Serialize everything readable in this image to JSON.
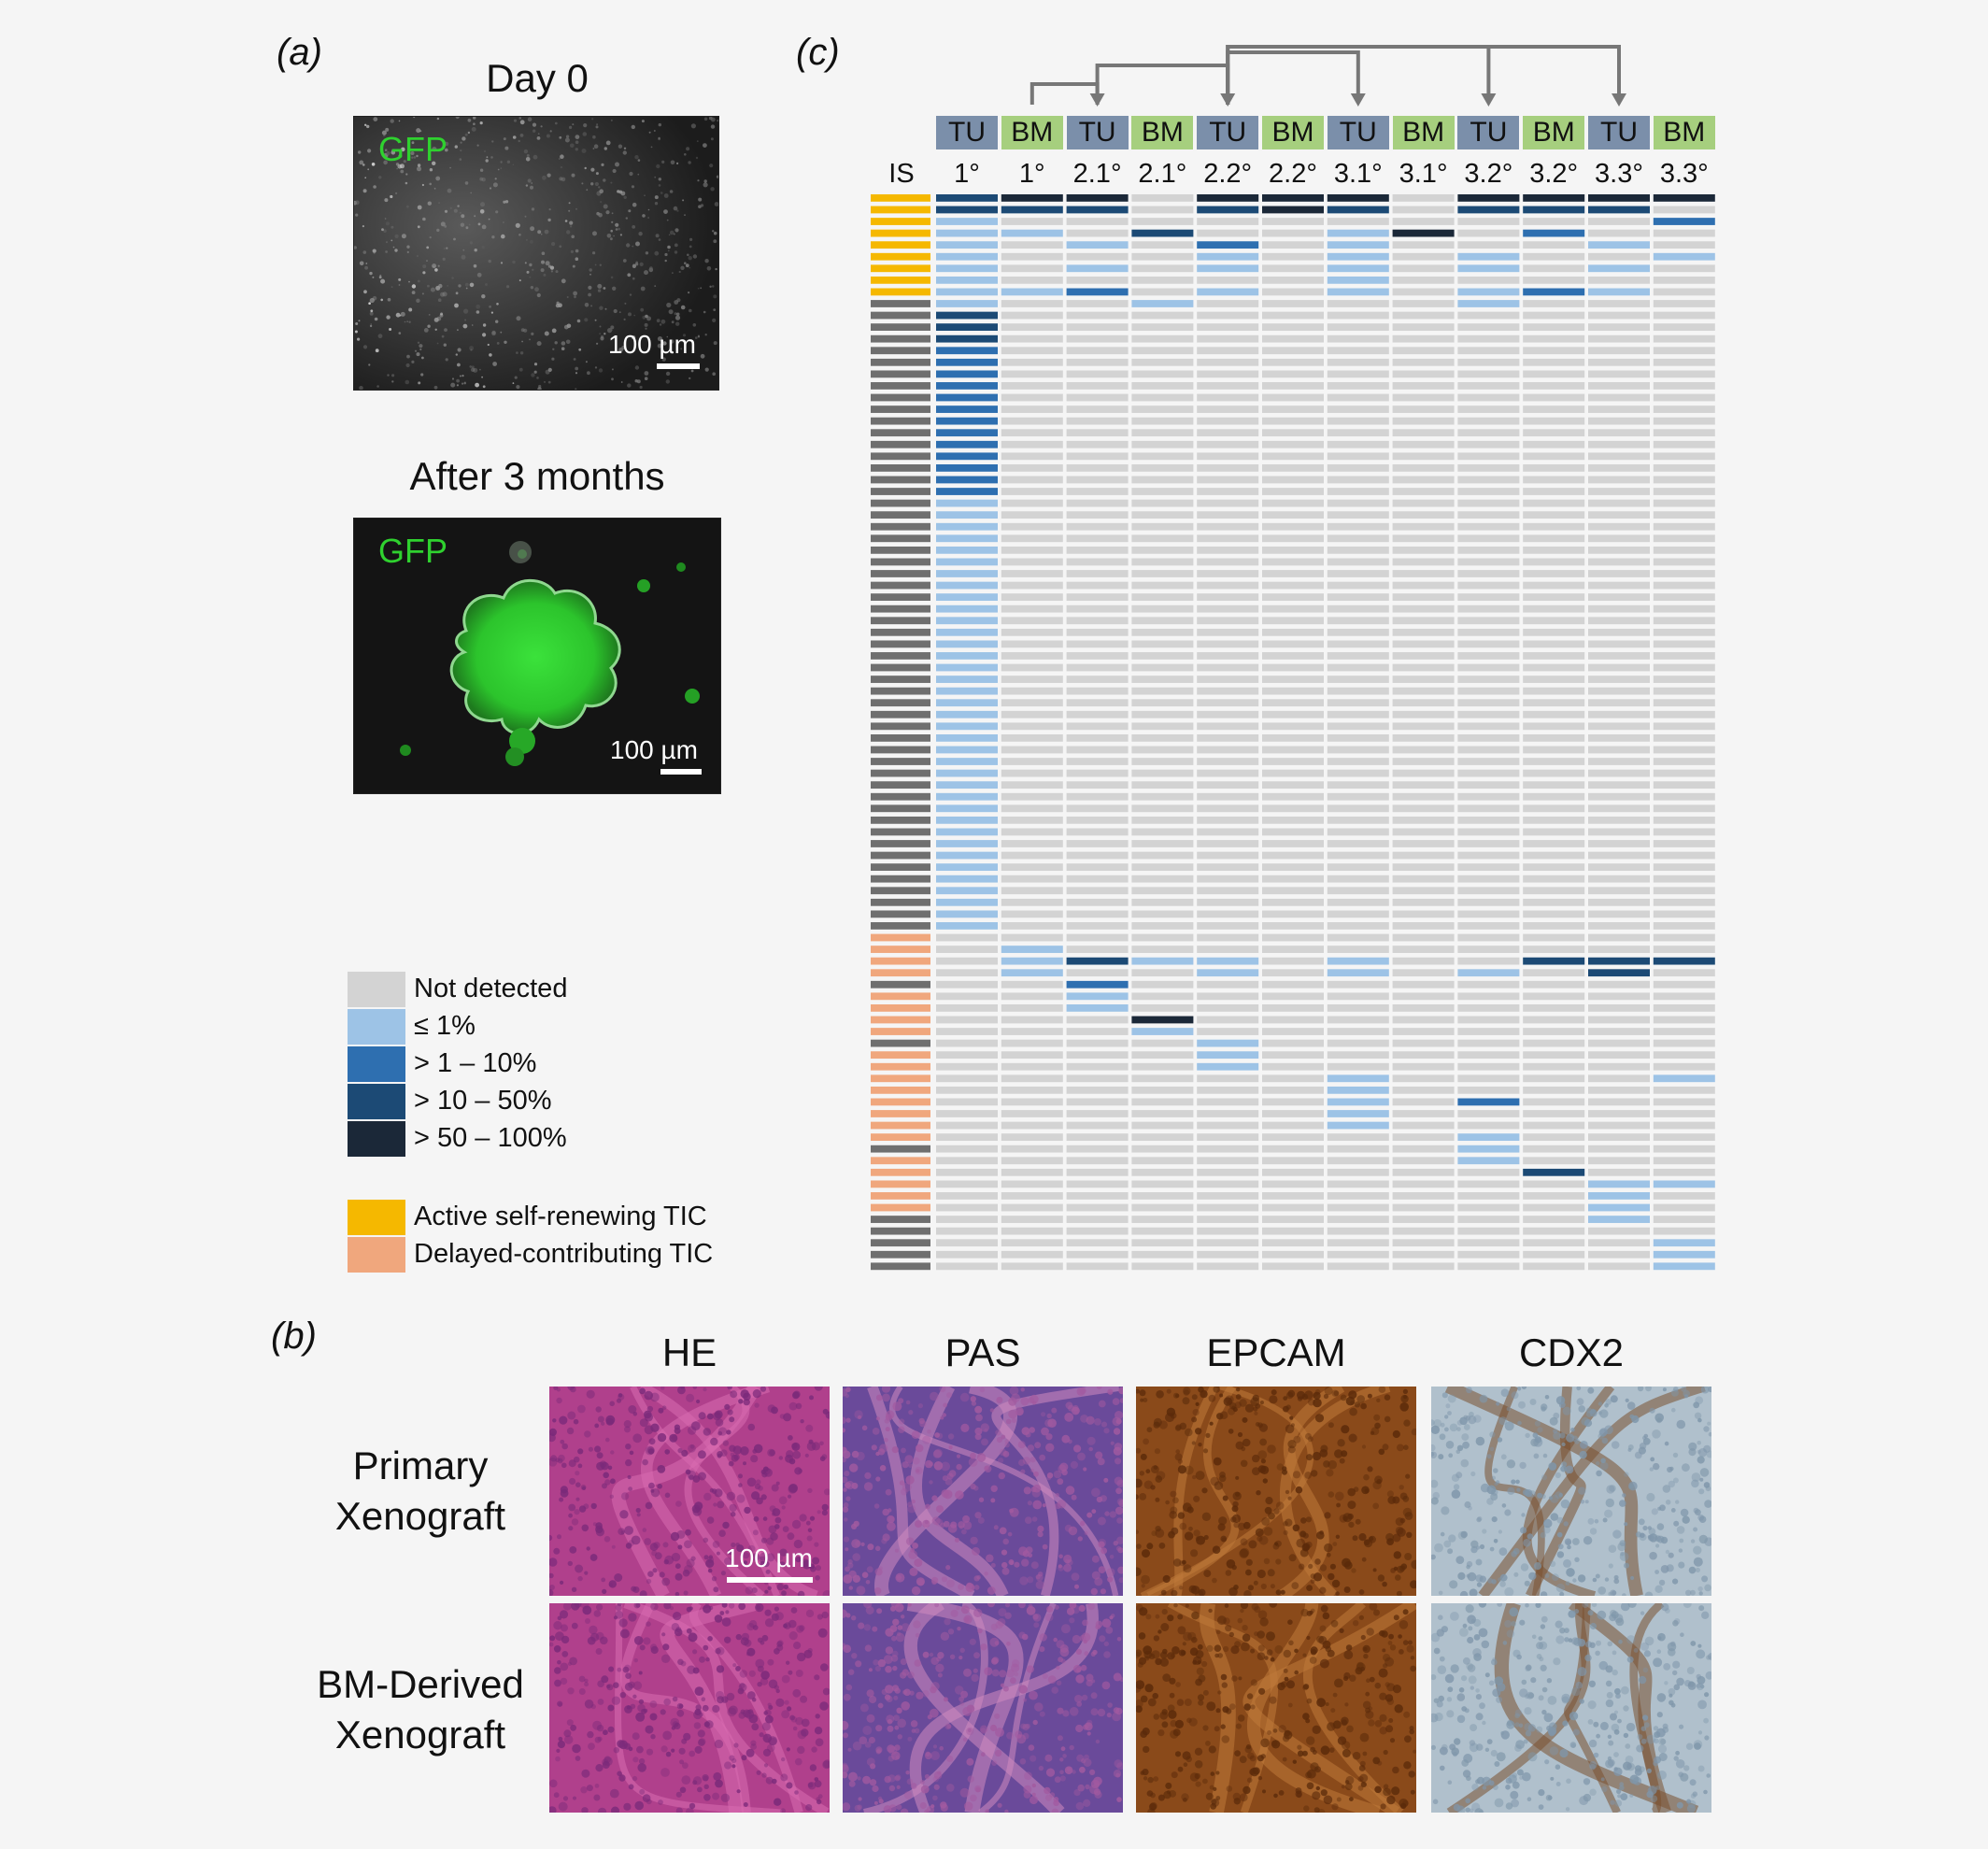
{
  "panel_a": {
    "label": "(a)",
    "day0_title": "Day 0",
    "after_title": "After 3 months",
    "gfp_label": "GFP",
    "scale_label": "100 µm"
  },
  "panel_b": {
    "label": "(b)",
    "columns": [
      "HE",
      "PAS",
      "EPCAM",
      "CDX2"
    ],
    "rows": [
      [
        "Primary",
        "Xenograft"
      ],
      [
        "BM-Derived",
        "Xenograft"
      ]
    ],
    "scale_label": "100 µm",
    "stain_colors": {
      "HE": [
        "#b0408c",
        "#7a2a7a",
        "#d96cb0"
      ],
      "PAS": [
        "#6a4a9a",
        "#a25aa0",
        "#d08ac0"
      ],
      "EPCAM": [
        "#8a4a1a",
        "#5a2a0a",
        "#c07a3a"
      ],
      "CDX2": [
        "#b0c0cc",
        "#7f96aa",
        "#7a5030"
      ]
    }
  },
  "panel_c": {
    "label": "(c)",
    "is_label": "IS",
    "columns": [
      {
        "type": "TU",
        "gen": "1°"
      },
      {
        "type": "BM",
        "gen": "1°"
      },
      {
        "type": "TU",
        "gen": "2.1°"
      },
      {
        "type": "BM",
        "gen": "2.1°"
      },
      {
        "type": "TU",
        "gen": "2.2°"
      },
      {
        "type": "BM",
        "gen": "2.2°"
      },
      {
        "type": "TU",
        "gen": "3.1°"
      },
      {
        "type": "BM",
        "gen": "3.1°"
      },
      {
        "type": "TU",
        "gen": "3.2°"
      },
      {
        "type": "BM",
        "gen": "3.2°"
      },
      {
        "type": "TU",
        "gen": "3.3°"
      },
      {
        "type": "BM",
        "gen": "3.3°"
      }
    ],
    "type_colors": {
      "TU": "#7b8faa",
      "BM": "#a6cf7e"
    },
    "level_colors": [
      "#d3d3d3",
      "#9dc3e6",
      "#2e6fb0",
      "#1c4a75",
      "#1b2838"
    ],
    "is_colors": {
      "A": "#f5b800",
      "G": "#6f6f6f",
      "D": "#f0a77d"
    },
    "is_column": "AAAAAAAAAGGGGGGGGGGGGGGGGGGGGGGGGGGGGGGGGGGGGGGGGGGGGGGGGGGGGGGDDDDGDDDDGDDDDDDDDGDDDDDGG",
    "grid": [
      [
        3,
        4,
        4,
        0,
        4,
        4,
        4,
        0,
        4,
        4,
        4,
        4
      ],
      [
        3,
        3,
        3,
        0,
        3,
        4,
        3,
        0,
        3,
        3,
        3,
        0
      ],
      [
        1,
        0,
        0,
        0,
        0,
        0,
        0,
        0,
        0,
        0,
        0,
        2
      ],
      [
        1,
        1,
        0,
        3,
        0,
        0,
        1,
        4,
        0,
        2,
        0,
        0
      ],
      [
        1,
        0,
        1,
        0,
        2,
        0,
        1,
        0,
        0,
        0,
        1,
        0
      ],
      [
        1,
        0,
        0,
        0,
        1,
        0,
        1,
        0,
        1,
        0,
        0,
        1
      ],
      [
        1,
        0,
        1,
        0,
        1,
        0,
        1,
        0,
        1,
        0,
        1,
        0
      ],
      [
        1,
        0,
        0,
        0,
        0,
        0,
        1,
        0,
        0,
        0,
        0,
        0
      ],
      [
        1,
        1,
        2,
        0,
        1,
        0,
        1,
        0,
        1,
        2,
        1,
        0
      ],
      [
        1,
        0,
        0,
        1,
        0,
        0,
        0,
        0,
        1,
        0,
        0,
        0
      ],
      [
        3,
        0,
        0,
        0,
        0,
        0,
        0,
        0,
        0,
        0,
        0,
        0
      ],
      [
        3,
        0,
        0,
        0,
        0,
        0,
        0,
        0,
        0,
        0,
        0,
        0
      ],
      [
        3,
        0,
        0,
        0,
        0,
        0,
        0,
        0,
        0,
        0,
        0,
        0
      ],
      [
        2,
        0,
        0,
        0,
        0,
        0,
        0,
        0,
        0,
        0,
        0,
        0
      ],
      [
        2,
        0,
        0,
        0,
        0,
        0,
        0,
        0,
        0,
        0,
        0,
        0
      ],
      [
        2,
        0,
        0,
        0,
        0,
        0,
        0,
        0,
        0,
        0,
        0,
        0
      ],
      [
        2,
        0,
        0,
        0,
        0,
        0,
        0,
        0,
        0,
        0,
        0,
        0
      ],
      [
        2,
        0,
        0,
        0,
        0,
        0,
        0,
        0,
        0,
        0,
        0,
        0
      ],
      [
        2,
        0,
        0,
        0,
        0,
        0,
        0,
        0,
        0,
        0,
        0,
        0
      ],
      [
        2,
        0,
        0,
        0,
        0,
        0,
        0,
        0,
        0,
        0,
        0,
        0
      ],
      [
        2,
        0,
        0,
        0,
        0,
        0,
        0,
        0,
        0,
        0,
        0,
        0
      ],
      [
        2,
        0,
        0,
        0,
        0,
        0,
        0,
        0,
        0,
        0,
        0,
        0
      ],
      [
        2,
        0,
        0,
        0,
        0,
        0,
        0,
        0,
        0,
        0,
        0,
        0
      ],
      [
        2,
        0,
        0,
        0,
        0,
        0,
        0,
        0,
        0,
        0,
        0,
        0
      ],
      [
        2,
        0,
        0,
        0,
        0,
        0,
        0,
        0,
        0,
        0,
        0,
        0
      ],
      [
        2,
        0,
        0,
        0,
        0,
        0,
        0,
        0,
        0,
        0,
        0,
        0
      ],
      [
        1,
        0,
        0,
        0,
        0,
        0,
        0,
        0,
        0,
        0,
        0,
        0
      ],
      [
        1,
        0,
        0,
        0,
        0,
        0,
        0,
        0,
        0,
        0,
        0,
        0
      ],
      [
        1,
        0,
        0,
        0,
        0,
        0,
        0,
        0,
        0,
        0,
        0,
        0
      ],
      [
        1,
        0,
        0,
        0,
        0,
        0,
        0,
        0,
        0,
        0,
        0,
        0
      ],
      [
        1,
        0,
        0,
        0,
        0,
        0,
        0,
        0,
        0,
        0,
        0,
        0
      ],
      [
        1,
        0,
        0,
        0,
        0,
        0,
        0,
        0,
        0,
        0,
        0,
        0
      ],
      [
        1,
        0,
        0,
        0,
        0,
        0,
        0,
        0,
        0,
        0,
        0,
        0
      ],
      [
        1,
        0,
        0,
        0,
        0,
        0,
        0,
        0,
        0,
        0,
        0,
        0
      ],
      [
        1,
        0,
        0,
        0,
        0,
        0,
        0,
        0,
        0,
        0,
        0,
        0
      ],
      [
        1,
        0,
        0,
        0,
        0,
        0,
        0,
        0,
        0,
        0,
        0,
        0
      ],
      [
        1,
        0,
        0,
        0,
        0,
        0,
        0,
        0,
        0,
        0,
        0,
        0
      ],
      [
        1,
        0,
        0,
        0,
        0,
        0,
        0,
        0,
        0,
        0,
        0,
        0
      ],
      [
        1,
        0,
        0,
        0,
        0,
        0,
        0,
        0,
        0,
        0,
        0,
        0
      ],
      [
        1,
        0,
        0,
        0,
        0,
        0,
        0,
        0,
        0,
        0,
        0,
        0
      ],
      [
        1,
        0,
        0,
        0,
        0,
        0,
        0,
        0,
        0,
        0,
        0,
        0
      ],
      [
        1,
        0,
        0,
        0,
        0,
        0,
        0,
        0,
        0,
        0,
        0,
        0
      ],
      [
        1,
        0,
        0,
        0,
        0,
        0,
        0,
        0,
        0,
        0,
        0,
        0
      ],
      [
        1,
        0,
        0,
        0,
        0,
        0,
        0,
        0,
        0,
        0,
        0,
        0
      ],
      [
        1,
        0,
        0,
        0,
        0,
        0,
        0,
        0,
        0,
        0,
        0,
        0
      ],
      [
        1,
        0,
        0,
        0,
        0,
        0,
        0,
        0,
        0,
        0,
        0,
        0
      ],
      [
        1,
        0,
        0,
        0,
        0,
        0,
        0,
        0,
        0,
        0,
        0,
        0
      ],
      [
        1,
        0,
        0,
        0,
        0,
        0,
        0,
        0,
        0,
        0,
        0,
        0
      ],
      [
        1,
        0,
        0,
        0,
        0,
        0,
        0,
        0,
        0,
        0,
        0,
        0
      ],
      [
        1,
        0,
        0,
        0,
        0,
        0,
        0,
        0,
        0,
        0,
        0,
        0
      ],
      [
        1,
        0,
        0,
        0,
        0,
        0,
        0,
        0,
        0,
        0,
        0,
        0
      ],
      [
        1,
        0,
        0,
        0,
        0,
        0,
        0,
        0,
        0,
        0,
        0,
        0
      ],
      [
        1,
        0,
        0,
        0,
        0,
        0,
        0,
        0,
        0,
        0,
        0,
        0
      ],
      [
        1,
        0,
        0,
        0,
        0,
        0,
        0,
        0,
        0,
        0,
        0,
        0
      ],
      [
        1,
        0,
        0,
        0,
        0,
        0,
        0,
        0,
        0,
        0,
        0,
        0
      ],
      [
        1,
        0,
        0,
        0,
        0,
        0,
        0,
        0,
        0,
        0,
        0,
        0
      ],
      [
        1,
        0,
        0,
        0,
        0,
        0,
        0,
        0,
        0,
        0,
        0,
        0
      ],
      [
        1,
        0,
        0,
        0,
        0,
        0,
        0,
        0,
        0,
        0,
        0,
        0
      ],
      [
        1,
        0,
        0,
        0,
        0,
        0,
        0,
        0,
        0,
        0,
        0,
        0
      ],
      [
        1,
        0,
        0,
        0,
        0,
        0,
        0,
        0,
        0,
        0,
        0,
        0
      ],
      [
        1,
        0,
        0,
        0,
        0,
        0,
        0,
        0,
        0,
        0,
        0,
        0
      ],
      [
        1,
        0,
        0,
        0,
        0,
        0,
        0,
        0,
        0,
        0,
        0,
        0
      ],
      [
        1,
        0,
        0,
        0,
        0,
        0,
        0,
        0,
        0,
        0,
        0,
        0
      ],
      [
        0,
        0,
        0,
        0,
        0,
        0,
        0,
        0,
        0,
        0,
        0,
        0
      ],
      [
        0,
        1,
        0,
        0,
        0,
        0,
        0,
        0,
        0,
        0,
        0,
        0
      ],
      [
        0,
        1,
        3,
        1,
        1,
        0,
        1,
        0,
        0,
        3,
        3,
        3
      ],
      [
        0,
        1,
        0,
        0,
        1,
        0,
        1,
        0,
        1,
        0,
        3,
        0
      ],
      [
        0,
        0,
        2,
        0,
        0,
        0,
        0,
        0,
        0,
        0,
        0,
        0
      ],
      [
        0,
        0,
        1,
        0,
        0,
        0,
        0,
        0,
        0,
        0,
        0,
        0
      ],
      [
        0,
        0,
        1,
        0,
        0,
        0,
        0,
        0,
        0,
        0,
        0,
        0
      ],
      [
        0,
        0,
        0,
        4,
        0,
        0,
        0,
        0,
        0,
        0,
        0,
        0
      ],
      [
        0,
        0,
        0,
        1,
        0,
        0,
        0,
        0,
        0,
        0,
        0,
        0
      ],
      [
        0,
        0,
        0,
        0,
        1,
        0,
        0,
        0,
        0,
        0,
        0,
        0
      ],
      [
        0,
        0,
        0,
        0,
        1,
        0,
        0,
        0,
        0,
        0,
        0,
        0
      ],
      [
        0,
        0,
        0,
        0,
        1,
        0,
        0,
        0,
        0,
        0,
        0,
        0
      ],
      [
        0,
        0,
        0,
        0,
        0,
        0,
        1,
        0,
        0,
        0,
        0,
        1
      ],
      [
        0,
        0,
        0,
        0,
        0,
        0,
        1,
        0,
        0,
        0,
        0,
        0
      ],
      [
        0,
        0,
        0,
        0,
        0,
        0,
        1,
        0,
        2,
        0,
        0,
        0
      ],
      [
        0,
        0,
        0,
        0,
        0,
        0,
        1,
        0,
        0,
        0,
        0,
        0
      ],
      [
        0,
        0,
        0,
        0,
        0,
        0,
        1,
        0,
        0,
        0,
        0,
        0
      ],
      [
        0,
        0,
        0,
        0,
        0,
        0,
        0,
        0,
        1,
        0,
        0,
        0
      ],
      [
        0,
        0,
        0,
        0,
        0,
        0,
        0,
        0,
        1,
        0,
        0,
        0
      ],
      [
        0,
        0,
        0,
        0,
        0,
        0,
        0,
        0,
        1,
        0,
        0,
        0
      ],
      [
        0,
        0,
        0,
        0,
        0,
        0,
        0,
        0,
        0,
        3,
        0,
        0
      ],
      [
        0,
        0,
        0,
        0,
        0,
        0,
        0,
        0,
        0,
        0,
        1,
        1
      ],
      [
        0,
        0,
        0,
        0,
        0,
        0,
        0,
        0,
        0,
        0,
        1,
        0
      ],
      [
        0,
        0,
        0,
        0,
        0,
        0,
        0,
        0,
        0,
        0,
        1,
        0
      ],
      [
        0,
        0,
        0,
        0,
        0,
        0,
        0,
        0,
        0,
        0,
        1,
        0
      ],
      [
        0,
        0,
        0,
        0,
        0,
        0,
        0,
        0,
        0,
        0,
        0,
        0
      ],
      [
        0,
        0,
        0,
        0,
        0,
        0,
        0,
        0,
        0,
        0,
        0,
        1
      ],
      [
        0,
        0,
        0,
        0,
        0,
        0,
        0,
        0,
        0,
        0,
        0,
        1
      ],
      [
        0,
        0,
        0,
        0,
        0,
        0,
        0,
        0,
        0,
        0,
        0,
        1
      ]
    ],
    "arrows": [
      {
        "from": 1,
        "to": 2
      },
      {
        "from": 2,
        "to": 4
      },
      {
        "from": 4,
        "to": 6
      },
      {
        "from": 4,
        "to": 8
      },
      {
        "from": 4,
        "to": 10
      }
    ]
  },
  "legend": {
    "levels": [
      "Not detected",
      "≤ 1%",
      "> 1 – 10%",
      "> 10 – 50%",
      "> 50 – 100%"
    ],
    "categories": [
      {
        "label": "Active self-renewing TIC",
        "color": "#f5b800"
      },
      {
        "label": "Delayed-contributing TIC",
        "color": "#f0a77d"
      }
    ]
  }
}
